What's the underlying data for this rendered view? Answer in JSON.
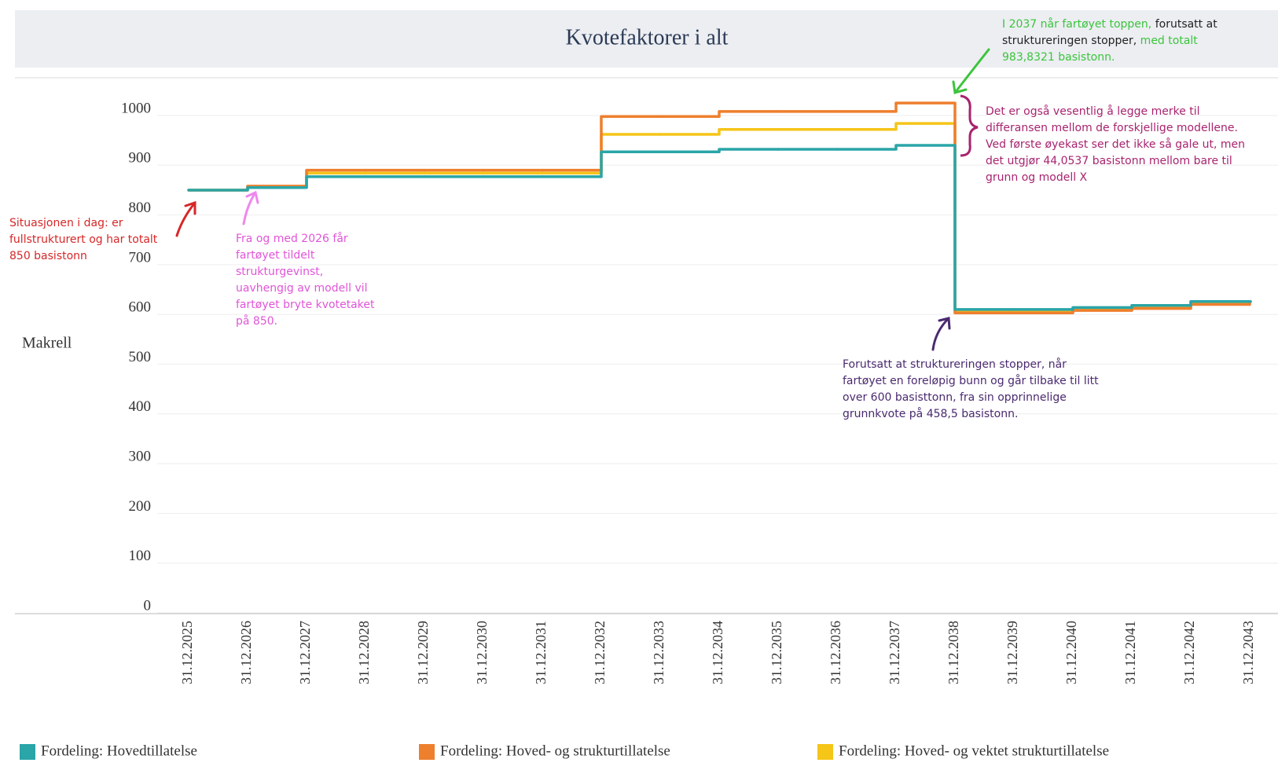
{
  "chart_data": {
    "type": "step",
    "title": "Kvotefaktorer i alt",
    "y_label": "Makrell",
    "categories": [
      "31.12.2025",
      "31.12.2026",
      "31.12.2027",
      "31.12.2028",
      "31.12.2029",
      "31.12.2030",
      "31.12.2031",
      "31.12.2032",
      "31.12.2033",
      "31.12.2034",
      "31.12.2035",
      "31.12.2036",
      "31.12.2037",
      "31.12.2038",
      "31.12.2039",
      "31.12.2040",
      "31.12.2041",
      "31.12.2042",
      "31.12.2043"
    ],
    "series": [
      {
        "name": "Fordeling: Hovedtillatelse",
        "color": "#2aa5a8",
        "values": [
          850,
          855,
          877,
          877,
          877,
          877,
          877,
          927,
          927,
          932,
          932,
          932,
          940,
          610,
          610,
          614,
          618,
          626,
          626
        ]
      },
      {
        "name": "Fordeling: Hoved- og strukturtillatelse",
        "color": "#ee7f2d",
        "values": [
          850,
          858,
          890,
          890,
          890,
          890,
          890,
          998,
          998,
          1008,
          1008,
          1008,
          1025,
          603,
          603,
          608,
          612,
          620,
          626
        ]
      },
      {
        "name": "Fordeling: Hoved- og vektet strukturtillatelse",
        "color": "#f5c518",
        "values": [
          850,
          857,
          884,
          884,
          884,
          884,
          884,
          962,
          962,
          972,
          972,
          972,
          984,
          606,
          606,
          611,
          615,
          623,
          626
        ]
      }
    ],
    "ylim": [
      0,
      1000
    ],
    "yticks": [
      0,
      100,
      200,
      300,
      400,
      500,
      600,
      700,
      800,
      900,
      1000
    ],
    "grid": true,
    "annotations": [
      {
        "text": "Situasjonen i dag: er fullstrukturert og har totalt 850 basistonn",
        "color": "#d62728"
      },
      {
        "text": "Fra og med 2026 får fartøyet tildelt strukturgevinst, uavhengig av modell vil fartøyet bryte kvotetaket på 850.",
        "color": "#e055d8"
      },
      {
        "parts": [
          {
            "text": "I 2037 når fartøyet toppen,",
            "color": "#3cc43c"
          },
          {
            "text": " forutsatt at struktureringen stopper,",
            "color": "#222222"
          },
          {
            "text": " med totalt 983,8321 basistonn.",
            "color": "#3cc43c"
          }
        ]
      },
      {
        "text": "Det er også vesentlig å legge merke til differansen mellom de forskjellige modellene. Ved første øyekast ser det ikke så gale ut, men det utgjør 44,0537 basistonn mellom bare til grunn og modell X",
        "color": "#a8236f"
      },
      {
        "text": "Forutsatt at struktureringen stopper, når fartøyet en foreløpig bunn og går tilbake til litt over 600 basisttonn, fra sin opprinnelige grunnkvote på 458,5 basistonn.",
        "color": "#4a2a70"
      }
    ]
  }
}
